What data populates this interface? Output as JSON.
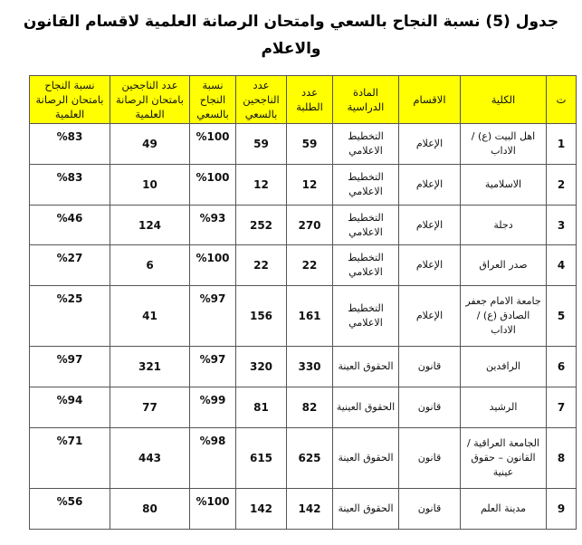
{
  "title_line1": "جدول (5) نسبة النجاح بالسعي وامتحان الرصانة العلمية لاقسام القانون",
  "title_line2": "والاعلام",
  "headers": [
    "ت",
    "الكلية",
    "الاقسام",
    "المادة الدراسية",
    "عدد الطلبة",
    "عدد الناجحين بالسعي",
    "نسبة النجاح بالسعي",
    "عدد الناجحين بامتحان الرصانة العلمية",
    "نسبة النجاح بامتحان الرصانة العلمية"
  ],
  "header_color": "#ffff00",
  "rows": [
    [
      "1",
      "اهل البيت (ع) / الاداب",
      "الإعلام",
      "التخطيط الاعلامي",
      "59",
      "59",
      "%100",
      "49",
      "%83"
    ],
    [
      "2",
      "الاسلامية",
      "الإعلام",
      "التخطيط الاعلامي",
      "12",
      "12",
      "%100",
      "10",
      "%83"
    ],
    [
      "3",
      "دجلة",
      "الإعلام",
      "التخطيط الاعلامي",
      "270",
      "252",
      "%93",
      "124",
      "%46"
    ],
    [
      "4",
      "صدر العراق",
      "الإعلام",
      "التخطيط الاعلامي",
      "22",
      "22",
      "%100",
      "6",
      "%27"
    ],
    [
      "5",
      "جامعة الامام جعفر الصادق (ع) / الاداب",
      "الإعلام",
      "التخطيط الاعلامي",
      "161",
      "156",
      "%97",
      "41",
      "%25"
    ],
    [
      "6",
      "الرافدين",
      "قانون",
      "الحقوق العينة",
      "330",
      "320",
      "%97",
      "321",
      "%97"
    ],
    [
      "7",
      "الرشيد",
      "قانون",
      "الحقوق العينية",
      "82",
      "81",
      "%99",
      "77",
      "%94"
    ],
    [
      "8",
      "الجامعة العراقية / القانون – حقوق عينية",
      "قانون",
      "الحقوق العينة",
      "625",
      "615",
      "%98",
      "443",
      "%71"
    ],
    [
      "9",
      "مدينة العلم",
      "قانون",
      "الحقوق العينة",
      "142",
      "142",
      "%100",
      "80",
      "%56"
    ]
  ]
}
